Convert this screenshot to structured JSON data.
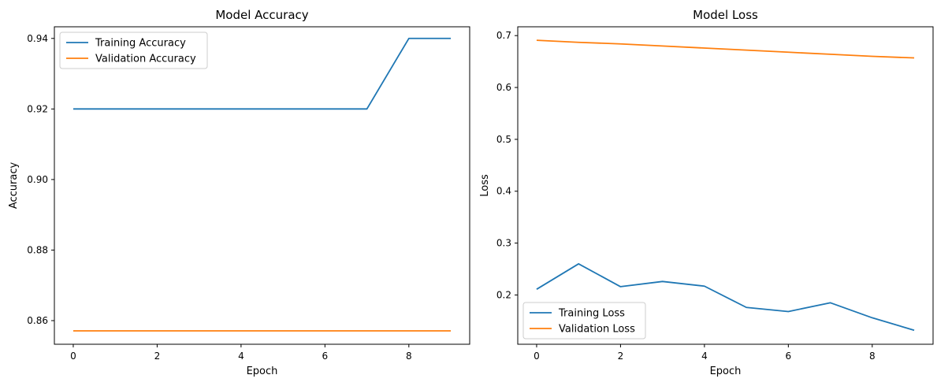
{
  "colors": {
    "training": "#1f77b4",
    "validation": "#ff7f0e"
  },
  "chart_data": [
    {
      "type": "line",
      "title": "Model Accuracy",
      "xlabel": "Epoch",
      "ylabel": "Accuracy",
      "x": [
        0,
        1,
        2,
        3,
        4,
        5,
        6,
        7,
        8,
        9
      ],
      "xlim": [
        -0.45,
        9.45
      ],
      "ylim": [
        0.8533,
        0.9433
      ],
      "xticks": [
        0,
        2,
        4,
        6,
        8
      ],
      "yticks": [
        0.86,
        0.88,
        0.9,
        0.92,
        0.94
      ],
      "ytick_labels": [
        "0.86",
        "0.88",
        "0.90",
        "0.92",
        "0.94"
      ],
      "grid": false,
      "legend_position": "upper-left",
      "series": [
        {
          "name": "Training Accuracy",
          "values": [
            0.92,
            0.92,
            0.92,
            0.92,
            0.92,
            0.92,
            0.92,
            0.92,
            0.94,
            0.94
          ]
        },
        {
          "name": "Validation Accuracy",
          "values": [
            0.8571,
            0.8571,
            0.8571,
            0.8571,
            0.8571,
            0.8571,
            0.8571,
            0.8571,
            0.8571,
            0.8571
          ]
        }
      ]
    },
    {
      "type": "line",
      "title": "Model Loss",
      "xlabel": "Epoch",
      "ylabel": "Loss",
      "x": [
        0,
        1,
        2,
        3,
        4,
        5,
        6,
        7,
        8,
        9
      ],
      "xlim": [
        -0.45,
        9.45
      ],
      "ylim": [
        0.105,
        0.717
      ],
      "xticks": [
        0,
        2,
        4,
        6,
        8
      ],
      "yticks": [
        0.2,
        0.3,
        0.4,
        0.5,
        0.6,
        0.7
      ],
      "ytick_labels": [
        "0.2",
        "0.3",
        "0.4",
        "0.5",
        "0.6",
        "0.7"
      ],
      "grid": false,
      "legend_position": "lower-left",
      "series": [
        {
          "name": "Training Loss",
          "values": [
            0.211,
            0.26,
            0.216,
            0.226,
            0.217,
            0.176,
            0.168,
            0.185,
            0.156,
            0.132
          ]
        },
        {
          "name": "Validation Loss",
          "values": [
            0.691,
            0.687,
            0.684,
            0.68,
            0.676,
            0.672,
            0.668,
            0.664,
            0.66,
            0.657
          ]
        }
      ]
    }
  ]
}
